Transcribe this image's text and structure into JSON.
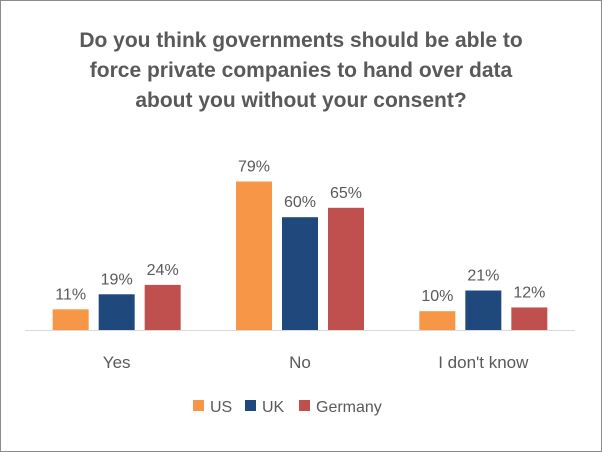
{
  "chart_data": {
    "type": "bar",
    "title_lines": [
      "Do you think governments should be able to",
      "force private companies to hand over data",
      "about you without your consent?"
    ],
    "categories": [
      "Yes",
      "No",
      "I don't know"
    ],
    "series": [
      {
        "name": "US",
        "color": "#f79646",
        "values": [
          11,
          79,
          10
        ],
        "labels": [
          "11%",
          "79%",
          "10%"
        ]
      },
      {
        "name": "UK",
        "color": "#1f497d",
        "values": [
          19,
          60,
          21
        ],
        "labels": [
          "19%",
          "60%",
          "21%"
        ]
      },
      {
        "name": "Germany",
        "color": "#c0504d",
        "values": [
          24,
          65,
          12
        ],
        "labels": [
          "24%",
          "65%",
          "12%"
        ]
      }
    ],
    "ylim": [
      0,
      100
    ],
    "grid": false,
    "legend_position": "bottom"
  }
}
